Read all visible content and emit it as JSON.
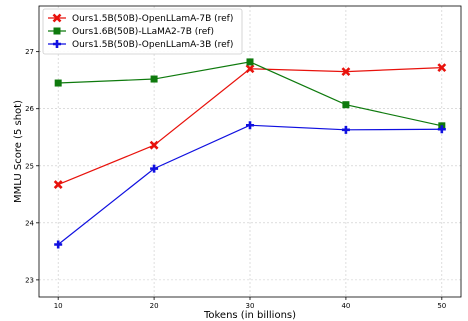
{
  "chart_data": {
    "type": "line",
    "title": "",
    "xlabel": "Tokens (in billions)",
    "ylabel": "MMLU Score (5 shot)",
    "x": [
      10,
      20,
      30,
      40,
      50
    ],
    "xlim": [
      8,
      52
    ],
    "ylim": [
      22.7,
      27.8
    ],
    "xticks": [
      10,
      20,
      30,
      40,
      50
    ],
    "yticks": [
      23,
      24,
      25,
      26,
      27
    ],
    "grid": true,
    "legend_position": "top-left",
    "series": [
      {
        "name": "Ours1.5B(50B)-OpenLLamA-7B (ref)",
        "color": "#e8120c",
        "marker": "x",
        "values": [
          24.67,
          25.36,
          26.7,
          26.65,
          26.72
        ]
      },
      {
        "name": "Ours1.6B(50B)-LLaMA2-7B (ref)",
        "color": "#0e7a0d",
        "marker": "square",
        "values": [
          26.45,
          26.52,
          26.82,
          26.07,
          25.7
        ]
      },
      {
        "name": "Ours1.5B(50B)-OpenLLamA-3B (ref)",
        "color": "#1010e0",
        "marker": "plus",
        "values": [
          23.62,
          24.95,
          25.71,
          25.63,
          25.64
        ]
      }
    ]
  }
}
